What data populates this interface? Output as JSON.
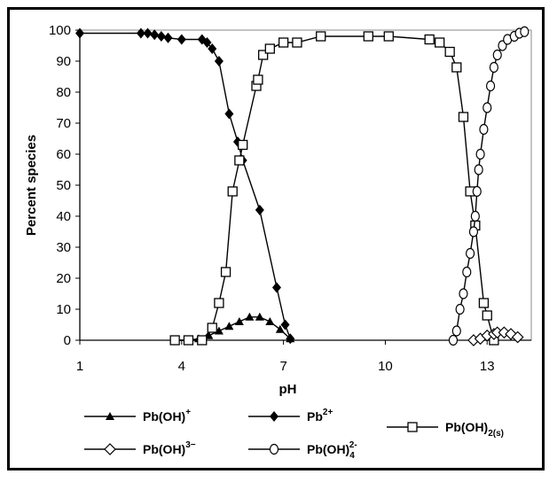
{
  "chart_data": {
    "type": "line",
    "xlabel": "pH",
    "ylabel": "Percent species",
    "xlim": [
      1,
      14.3
    ],
    "ylim": [
      0,
      100
    ],
    "x_ticks": [
      "1",
      "4",
      "7",
      "10",
      "13"
    ],
    "y_ticks": [
      "0",
      "10",
      "20",
      "30",
      "40",
      "50",
      "60",
      "70",
      "80",
      "90",
      "100"
    ],
    "grid": false,
    "legend_position": "bottom",
    "series": [
      {
        "name": "Pb(OH)+",
        "label_base": "Pb(OH)",
        "label_sup": "+",
        "label_sub": "",
        "marker": "triangle",
        "points": [
          [
            3.8,
            0
          ],
          [
            4.2,
            0
          ],
          [
            4.5,
            0.5
          ],
          [
            4.8,
            1.5
          ],
          [
            5.1,
            3
          ],
          [
            5.4,
            4.5
          ],
          [
            5.7,
            6
          ],
          [
            6.0,
            7.5
          ],
          [
            6.3,
            7.5
          ],
          [
            6.6,
            6
          ],
          [
            6.9,
            3.5
          ],
          [
            7.2,
            0.5
          ]
        ]
      },
      {
        "name": "Pb2+",
        "label_base": "Pb",
        "label_sup": "2+",
        "label_sub": "",
        "marker": "diamond",
        "points": [
          [
            1,
            99
          ],
          [
            2.8,
            99
          ],
          [
            3.0,
            99
          ],
          [
            3.2,
            98.5
          ],
          [
            3.4,
            98
          ],
          [
            3.6,
            97.5
          ],
          [
            4.0,
            97
          ],
          [
            4.6,
            97
          ],
          [
            4.75,
            96
          ],
          [
            4.9,
            94
          ],
          [
            5.1,
            90
          ],
          [
            5.4,
            73
          ],
          [
            5.65,
            64
          ],
          [
            5.8,
            58
          ],
          [
            6.3,
            42
          ],
          [
            6.8,
            17
          ],
          [
            7.05,
            5
          ],
          [
            7.2,
            0.5
          ]
        ]
      },
      {
        "name": "Pb(OH)2(s)",
        "label_base": "Pb(OH)",
        "label_sup": "",
        "label_sub": "2(s)",
        "marker": "square",
        "points": [
          [
            3.8,
            0
          ],
          [
            4.2,
            0
          ],
          [
            4.6,
            0
          ],
          [
            4.9,
            4
          ],
          [
            5.1,
            12
          ],
          [
            5.3,
            22
          ],
          [
            5.5,
            48
          ],
          [
            5.7,
            58
          ],
          [
            5.8,
            63
          ],
          [
            6.2,
            82
          ],
          [
            6.25,
            84
          ],
          [
            6.4,
            92
          ],
          [
            6.6,
            94
          ],
          [
            7.0,
            96
          ],
          [
            7.4,
            96
          ],
          [
            8.1,
            98
          ],
          [
            9.5,
            98
          ],
          [
            10.1,
            98
          ],
          [
            11.3,
            97
          ],
          [
            11.6,
            96
          ],
          [
            11.9,
            93
          ],
          [
            12.1,
            88
          ],
          [
            12.3,
            72
          ],
          [
            12.5,
            48
          ],
          [
            12.65,
            37
          ],
          [
            12.9,
            12
          ],
          [
            13.0,
            8
          ],
          [
            13.2,
            0
          ]
        ]
      },
      {
        "name": "Pb(OH)3-",
        "label_base": "Pb(OH)",
        "label_sup": "3−",
        "label_sub": "",
        "marker": "diamond-open",
        "points": [
          [
            12.6,
            0
          ],
          [
            12.8,
            0.5
          ],
          [
            13.0,
            1.5
          ],
          [
            13.2,
            2
          ],
          [
            13.3,
            2.5
          ],
          [
            13.5,
            2.5
          ],
          [
            13.7,
            2
          ],
          [
            13.9,
            1
          ]
        ]
      },
      {
        "name": "Pb(OH)42-",
        "label_base": "Pb(OH)",
        "label_sup": "2-",
        "label_sub": "4",
        "marker": "circle",
        "points": [
          [
            12.0,
            0
          ],
          [
            12.1,
            3
          ],
          [
            12.2,
            10
          ],
          [
            12.3,
            15
          ],
          [
            12.4,
            22
          ],
          [
            12.5,
            28
          ],
          [
            12.6,
            35
          ],
          [
            12.65,
            40
          ],
          [
            12.7,
            48
          ],
          [
            12.75,
            55
          ],
          [
            12.8,
            60
          ],
          [
            12.9,
            68
          ],
          [
            13.0,
            75
          ],
          [
            13.1,
            82
          ],
          [
            13.2,
            88
          ],
          [
            13.3,
            92
          ],
          [
            13.45,
            95
          ],
          [
            13.6,
            97
          ],
          [
            13.8,
            98
          ],
          [
            13.95,
            99
          ],
          [
            14.1,
            99.5
          ]
        ]
      }
    ]
  }
}
